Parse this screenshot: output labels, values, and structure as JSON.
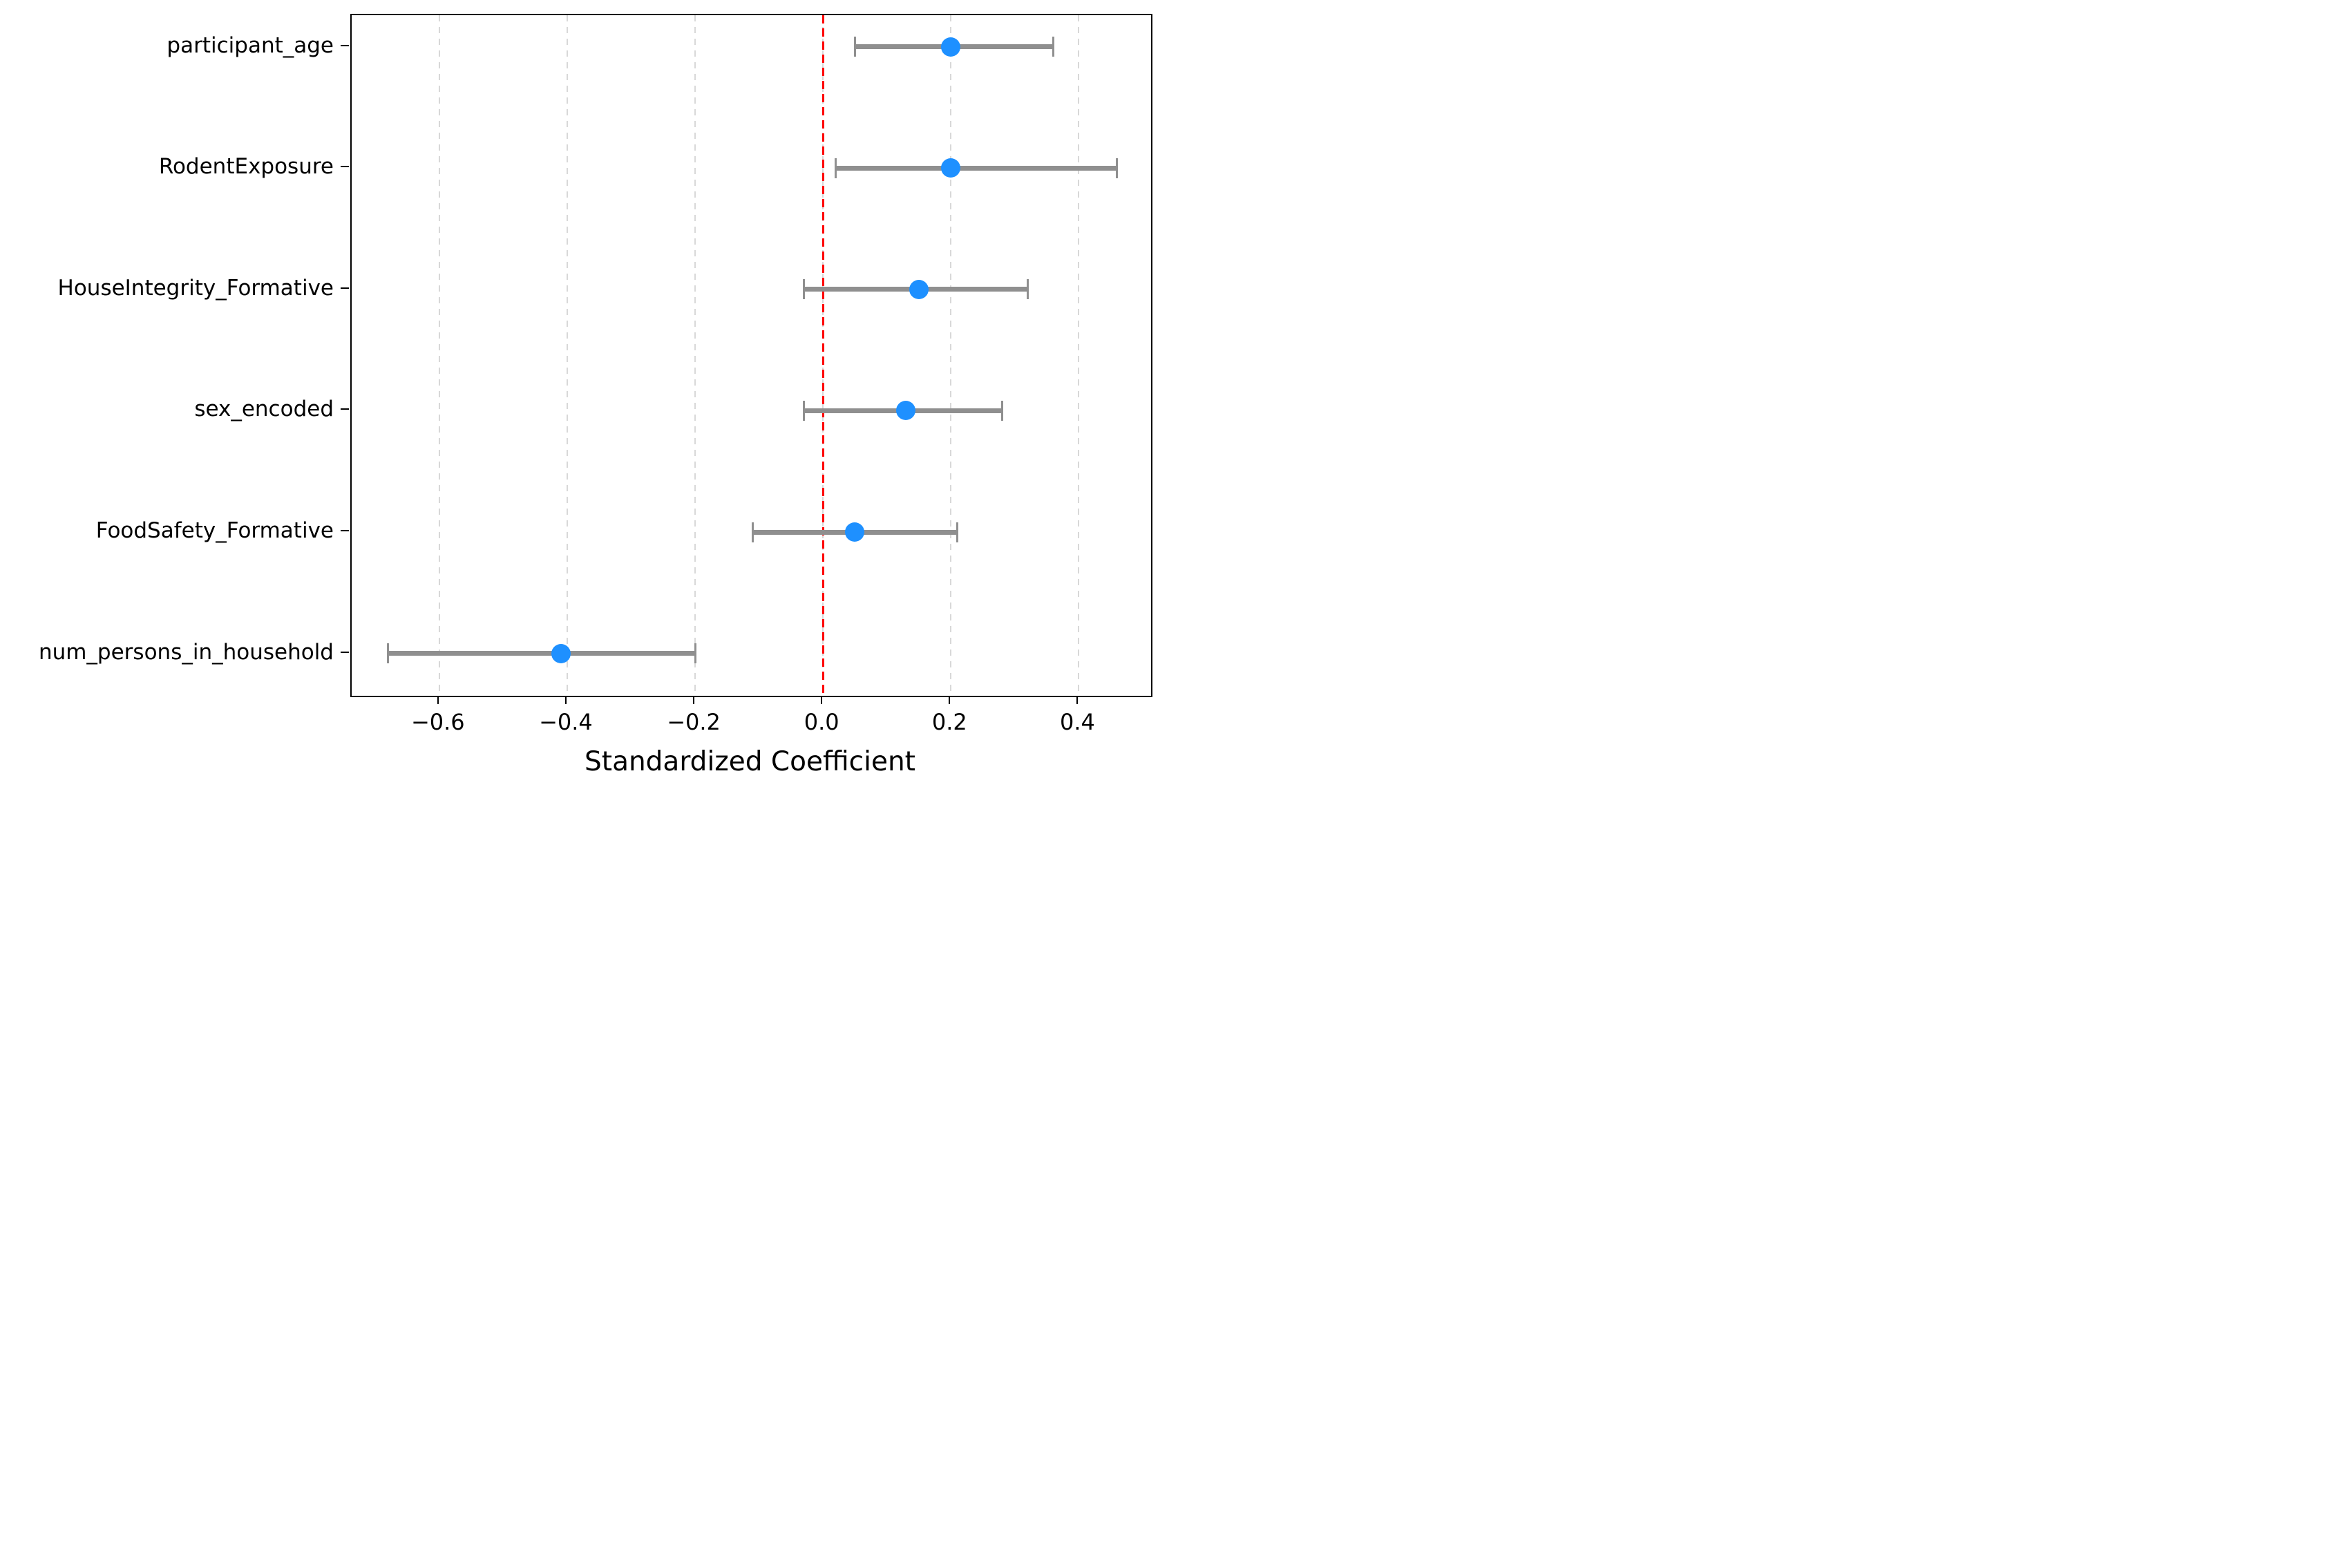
{
  "chart_data": {
    "type": "scatter",
    "subtype": "coefficient-dot-whisker",
    "title": "",
    "xlabel": "Standardized Coefficient",
    "ylabel": "",
    "xlim": [
      -0.737,
      0.513
    ],
    "grid": true,
    "legend": false,
    "x_ticks": [
      {
        "value": -0.6,
        "label": "−0.6"
      },
      {
        "value": -0.4,
        "label": "−0.4"
      },
      {
        "value": -0.2,
        "label": "−0.2"
      },
      {
        "value": 0.0,
        "label": "0.0"
      },
      {
        "value": 0.2,
        "label": "0.2"
      },
      {
        "value": 0.4,
        "label": "0.4"
      }
    ],
    "gridline_values": [
      -0.6,
      -0.4,
      -0.2,
      0.0,
      0.2,
      0.4
    ],
    "zero_reference_line": {
      "value": 0.0,
      "style": "dashed",
      "color": "#fe0000"
    },
    "categories": [
      "participant_age",
      "RodentExposure",
      "HouseIntegrity_Formative",
      "sex_encoded",
      "FoodSafety_Formative",
      "num_persons_in_household"
    ],
    "points": [
      {
        "label": "participant_age",
        "estimate": 0.2,
        "ci_low": 0.05,
        "ci_high": 0.36
      },
      {
        "label": "RodentExposure",
        "estimate": 0.2,
        "ci_low": 0.02,
        "ci_high": 0.46
      },
      {
        "label": "HouseIntegrity_Formative",
        "estimate": 0.15,
        "ci_low": -0.03,
        "ci_high": 0.32
      },
      {
        "label": "sex_encoded",
        "estimate": 0.13,
        "ci_low": -0.03,
        "ci_high": 0.28
      },
      {
        "label": "FoodSafety_Formative",
        "estimate": 0.05,
        "ci_low": -0.11,
        "ci_high": 0.21
      },
      {
        "label": "num_persons_in_household",
        "estimate": -0.41,
        "ci_low": -0.68,
        "ci_high": -0.2
      }
    ],
    "colors": {
      "marker": "#1E90FF",
      "error_bar": "#8f8f8f",
      "zero_line": "#fe0000",
      "gridline": "#d8d8d8",
      "axis": "#000000",
      "background": "#ffffff"
    }
  }
}
